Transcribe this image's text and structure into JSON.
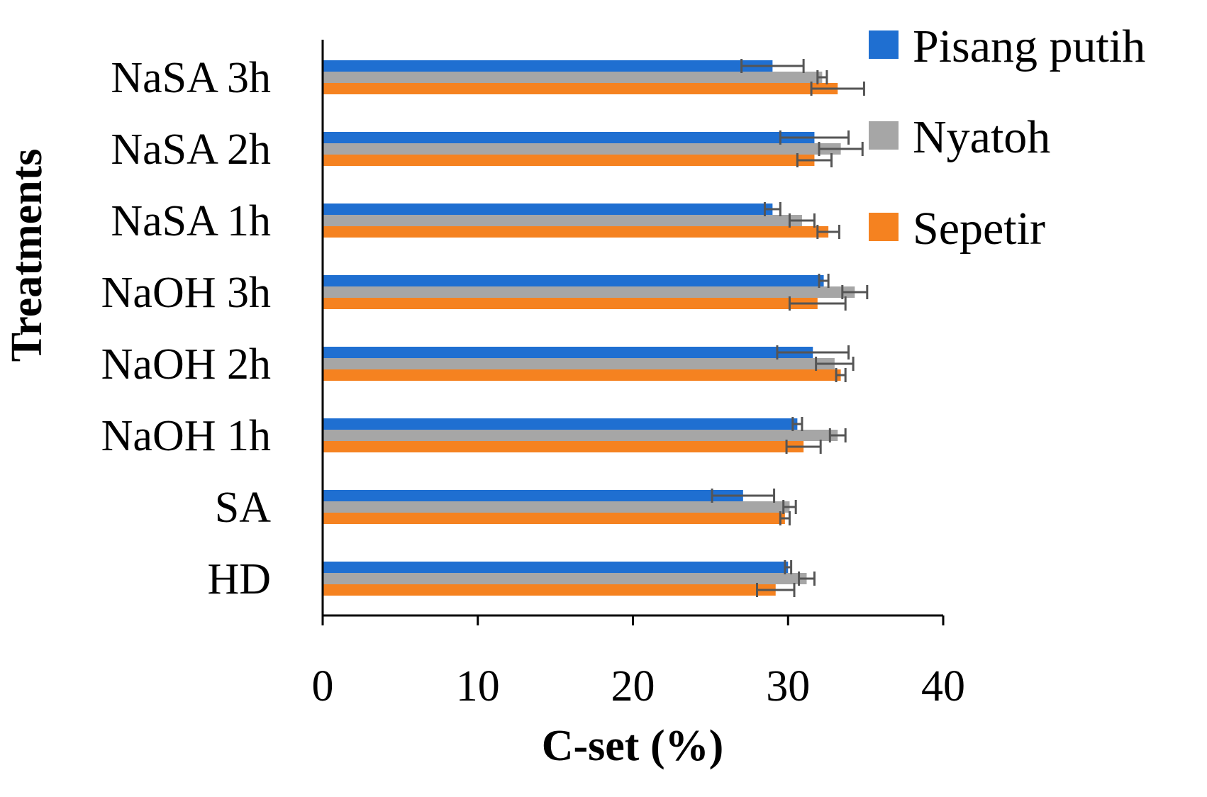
{
  "chart_data": {
    "type": "bar",
    "orientation": "horizontal",
    "title": "",
    "xlabel": "C-set (%)",
    "ylabel": "Treatments",
    "xlim": [
      0,
      40
    ],
    "xticks": [
      "0",
      "10",
      "20",
      "30",
      "40"
    ],
    "grid": false,
    "legend_position": "top-right",
    "categories": [
      "NaSA 3h",
      "NaSA 2h",
      "NaSA 1h",
      "NaOH 3h",
      "NaOH 2h",
      "NaOH 1h",
      "SA",
      "HD"
    ],
    "series": [
      {
        "name": "Pisang putih",
        "color": "#1f6fd1",
        "values": [
          29.0,
          31.7,
          29.0,
          32.3,
          31.6,
          30.6,
          27.1,
          30.0
        ],
        "errors": [
          2.0,
          2.2,
          0.5,
          0.3,
          2.3,
          0.3,
          2.0,
          0.2
        ]
      },
      {
        "name": "Nyatoh",
        "color": "#a6a6a6",
        "values": [
          32.2,
          33.4,
          30.9,
          34.3,
          33.0,
          33.2,
          30.1,
          31.2
        ],
        "errors": [
          0.3,
          1.4,
          0.8,
          0.8,
          1.2,
          0.5,
          0.4,
          0.5
        ]
      },
      {
        "name": "Sepetir",
        "color": "#f58220",
        "values": [
          33.2,
          31.7,
          32.6,
          31.9,
          33.4,
          31.0,
          29.8,
          29.2
        ],
        "errors": [
          1.7,
          1.1,
          0.7,
          1.8,
          0.3,
          1.1,
          0.3,
          1.2
        ]
      }
    ]
  }
}
